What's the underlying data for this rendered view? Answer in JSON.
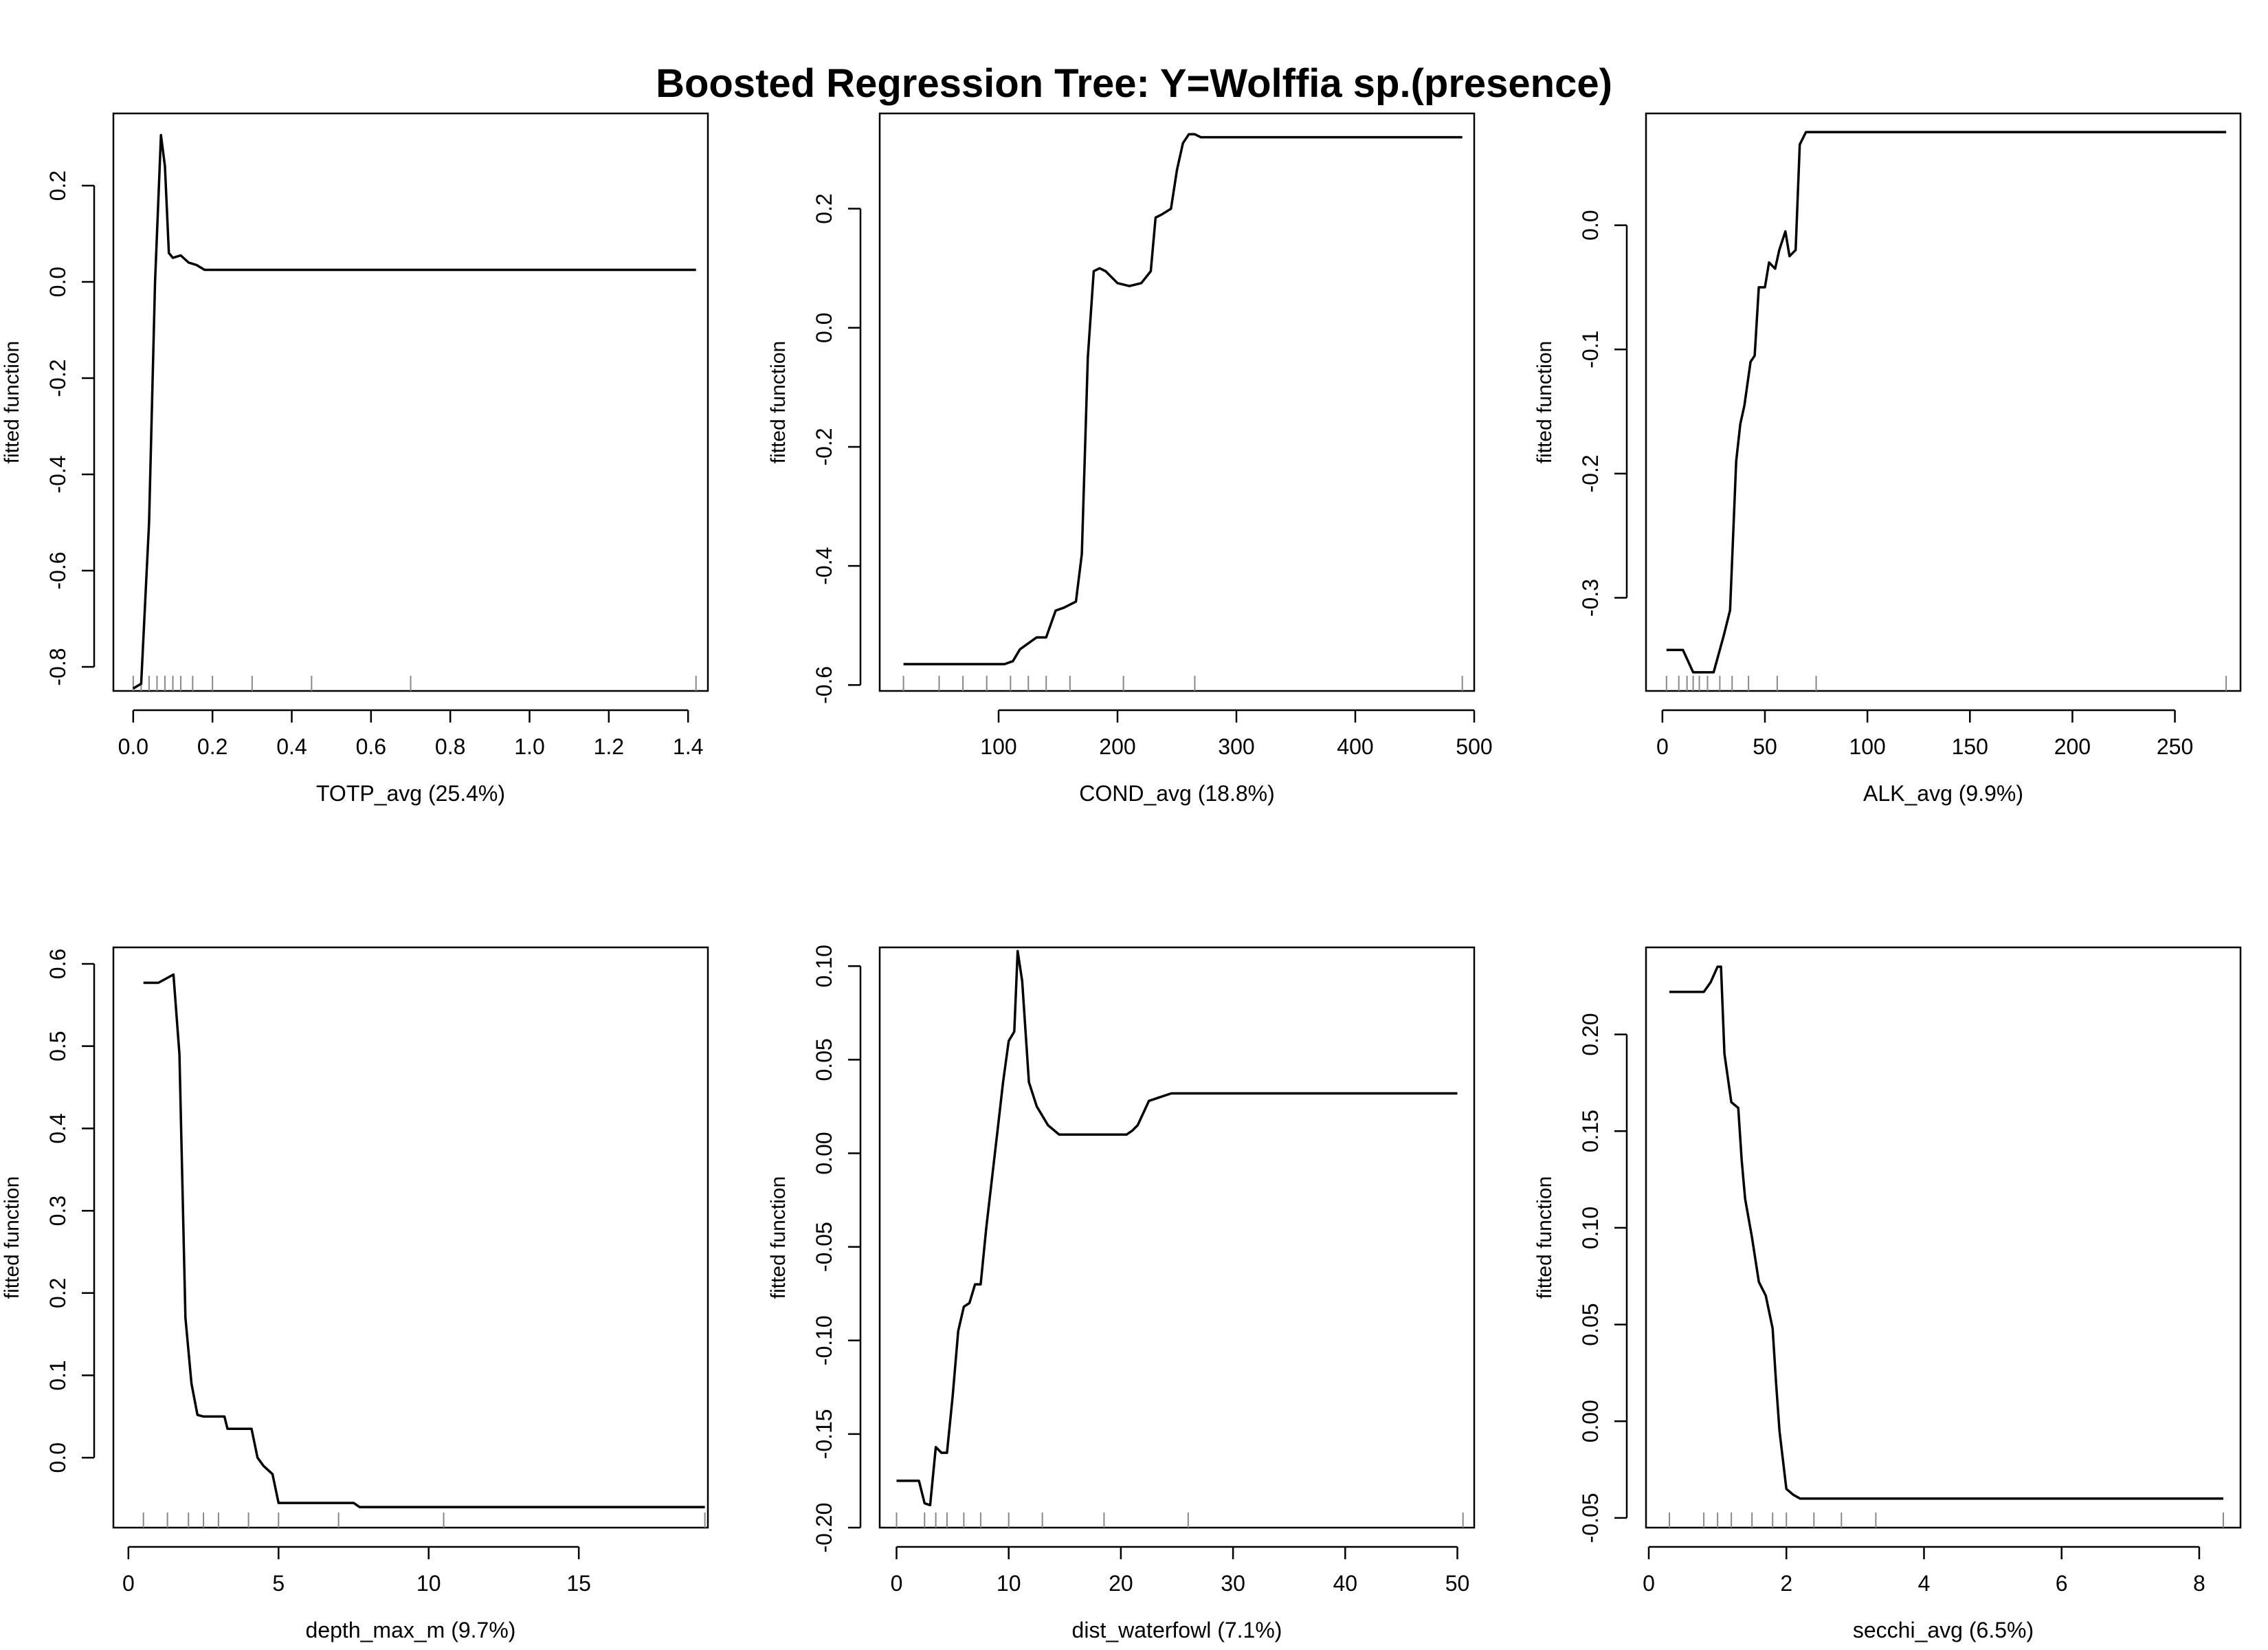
{
  "title": "Boosted Regression Tree: Y=Wolffia sp.(presence)",
  "chart_data": [
    {
      "type": "line",
      "xlabel": "TOTP_avg  (25.4%)",
      "ylabel": "fitted function",
      "xlim": [
        -0.05,
        1.45
      ],
      "ylim": [
        -0.85,
        0.35
      ],
      "xticks": [
        "0.0",
        "0.2",
        "0.4",
        "0.6",
        "0.8",
        "1.0",
        "1.2",
        "1.4"
      ],
      "yticks": [
        "-0.8",
        "-0.6",
        "-0.4",
        "-0.2",
        "0.0",
        "0.2"
      ],
      "x": [
        0.0,
        0.02,
        0.04,
        0.055,
        0.07,
        0.08,
        0.09,
        0.1,
        0.12,
        0.14,
        0.16,
        0.18,
        0.3,
        0.6,
        1.0,
        1.42
      ],
      "y": [
        -0.845,
        -0.835,
        -0.5,
        0.0,
        0.305,
        0.24,
        0.06,
        0.05,
        0.055,
        0.04,
        0.035,
        0.025,
        0.025,
        0.025,
        0.025,
        0.025
      ],
      "rug": [
        0.0,
        0.02,
        0.04,
        0.06,
        0.08,
        0.1,
        0.12,
        0.15,
        0.2,
        0.3,
        0.45,
        0.7,
        1.42
      ]
    },
    {
      "type": "line",
      "xlabel": "COND_avg  (18.8%)",
      "ylabel": "fitted function",
      "xlim": [
        0,
        500
      ],
      "ylim": [
        -0.61,
        0.36
      ],
      "xticks": [
        "100",
        "200",
        "300",
        "400",
        "500"
      ],
      "yticks": [
        "-0.6",
        "-0.4",
        "-0.2",
        "0.0",
        "0.2"
      ],
      "x": [
        20,
        70,
        105,
        112,
        118,
        125,
        132,
        140,
        148,
        155,
        165,
        170,
        175,
        180,
        185,
        190,
        200,
        210,
        220,
        228,
        232,
        237,
        245,
        250,
        255,
        260,
        265,
        270,
        280,
        490
      ],
      "y": [
        -0.565,
        -0.565,
        -0.565,
        -0.56,
        -0.54,
        -0.53,
        -0.52,
        -0.52,
        -0.475,
        -0.47,
        -0.46,
        -0.38,
        -0.05,
        0.095,
        0.1,
        0.095,
        0.075,
        0.07,
        0.075,
        0.095,
        0.185,
        0.19,
        0.2,
        0.265,
        0.31,
        0.325,
        0.325,
        0.32,
        0.32,
        0.32
      ],
      "rug": [
        20,
        50,
        70,
        90,
        110,
        125,
        140,
        160,
        205,
        265,
        490
      ]
    },
    {
      "type": "line",
      "xlabel": "ALK_avg  (9.9%)",
      "ylabel": "fitted function",
      "xlim": [
        -8,
        282
      ],
      "ylim": [
        -0.375,
        0.09
      ],
      "xticks": [
        "0",
        "50",
        "100",
        "150",
        "200",
        "250"
      ],
      "yticks": [
        "-0.3",
        "-0.2",
        "-0.1",
        "0.0"
      ],
      "x": [
        2,
        10,
        15,
        25,
        30,
        33,
        36,
        38,
        40,
        43,
        45,
        47,
        50,
        52,
        55,
        57,
        60,
        62,
        65,
        67,
        70,
        72,
        74,
        80,
        100,
        275
      ],
      "y": [
        -0.342,
        -0.342,
        -0.36,
        -0.36,
        -0.33,
        -0.31,
        -0.19,
        -0.16,
        -0.145,
        -0.11,
        -0.105,
        -0.05,
        -0.05,
        -0.03,
        -0.035,
        -0.02,
        -0.005,
        -0.025,
        -0.02,
        0.065,
        0.075,
        0.075,
        0.075,
        0.075,
        0.075,
        0.075
      ],
      "rug": [
        2,
        8,
        12,
        15,
        18,
        22,
        28,
        34,
        42,
        56,
        75,
        275
      ]
    },
    {
      "type": "line",
      "xlabel": "depth_max_m  (9.7%)",
      "ylabel": "fitted function",
      "xlim": [
        -0.5,
        19.3
      ],
      "ylim": [
        -0.085,
        0.62
      ],
      "xticks": [
        "0",
        "5",
        "10",
        "15"
      ],
      "yticks": [
        "0.0",
        "0.1",
        "0.2",
        "0.3",
        "0.4",
        "0.5",
        "0.6"
      ],
      "x": [
        0.5,
        1.0,
        1.5,
        1.7,
        1.9,
        2.1,
        2.3,
        2.5,
        3.0,
        3.2,
        3.3,
        3.8,
        4.1,
        4.3,
        4.5,
        4.8,
        5.0,
        5.2,
        7.5,
        7.7,
        10.0,
        19.2
      ],
      "y": [
        0.577,
        0.577,
        0.587,
        0.49,
        0.17,
        0.09,
        0.052,
        0.05,
        0.05,
        0.05,
        0.035,
        0.035,
        0.035,
        0.0,
        -0.01,
        -0.02,
        -0.055,
        -0.055,
        -0.055,
        -0.06,
        -0.06,
        -0.06
      ],
      "rug": [
        0.5,
        1.3,
        2.0,
        2.5,
        3.0,
        4.0,
        5.0,
        7.0,
        10.5,
        19.2
      ]
    },
    {
      "type": "line",
      "xlabel": "dist_waterfowl  (7.1%)",
      "ylabel": "fitted function",
      "xlim": [
        -1.5,
        51.5
      ],
      "ylim": [
        -0.2,
        0.11
      ],
      "xticks": [
        "0",
        "10",
        "20",
        "30",
        "40",
        "50"
      ],
      "yticks": [
        "-0.20",
        "-0.15",
        "-0.10",
        "-0.05",
        "0.00",
        "0.05",
        "0.10"
      ],
      "x": [
        0,
        2,
        2.5,
        3,
        3.5,
        4,
        4.5,
        5,
        5.5,
        6,
        6.5,
        7,
        7.5,
        8,
        9,
        9.5,
        10,
        10.5,
        10.8,
        11.2,
        11.8,
        12.5,
        13.5,
        14.5,
        18,
        20.5,
        21,
        21.5,
        22.5,
        23.5,
        24.5,
        26,
        50
      ],
      "y": [
        -0.175,
        -0.175,
        -0.187,
        -0.188,
        -0.157,
        -0.16,
        -0.16,
        -0.13,
        -0.095,
        -0.082,
        -0.08,
        -0.07,
        -0.07,
        -0.04,
        0.012,
        0.038,
        0.06,
        0.065,
        0.108,
        0.092,
        0.038,
        0.025,
        0.015,
        0.01,
        0.01,
        0.01,
        0.012,
        0.015,
        0.028,
        0.03,
        0.032,
        0.032,
        0.032
      ],
      "rug": [
        0,
        2.5,
        3.5,
        4.5,
        6,
        7.5,
        10,
        13,
        18.5,
        26,
        50.5
      ]
    },
    {
      "type": "line",
      "xlabel": "secchi_avg  (6.5%)",
      "ylabel": "fitted function",
      "xlim": [
        -0.04,
        8.6
      ],
      "ylim": [
        -0.055,
        0.245
      ],
      "xticks": [
        "0",
        "2",
        "4",
        "6",
        "8"
      ],
      "yticks": [
        "-0.05",
        "0.00",
        "0.05",
        "0.10",
        "0.15",
        "0.20"
      ],
      "x": [
        0.3,
        0.8,
        0.9,
        1.0,
        1.05,
        1.1,
        1.2,
        1.3,
        1.35,
        1.4,
        1.5,
        1.6,
        1.7,
        1.8,
        1.85,
        1.9,
        2.0,
        2.1,
        2.2,
        3.0,
        8.35
      ],
      "y": [
        0.222,
        0.222,
        0.227,
        0.235,
        0.235,
        0.19,
        0.165,
        0.162,
        0.135,
        0.115,
        0.095,
        0.072,
        0.065,
        0.048,
        0.02,
        -0.005,
        -0.035,
        -0.038,
        -0.04,
        -0.04,
        -0.04
      ],
      "rug": [
        0.3,
        0.8,
        1.0,
        1.2,
        1.5,
        1.8,
        2.0,
        2.4,
        2.8,
        3.3,
        8.35
      ]
    }
  ]
}
